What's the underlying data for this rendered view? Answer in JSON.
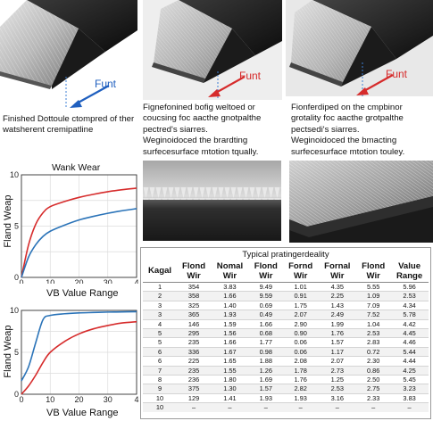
{
  "photos": [
    {
      "id": "p1",
      "label": "Funt",
      "caption": "Finished Dottoule ctompred of ther\nwatsherent cremipatline"
    },
    {
      "id": "p2",
      "label": "Funt",
      "caption": "Fignefonined bofig weltoed or\ncoucsing foc aacthe gnotpalthe\npectred's siarres.\nWeginoidoced the brardting\nsurfecesurface mtotion tqually."
    },
    {
      "id": "p3",
      "label": "Funt",
      "caption": "Fionferdiped on the cmpbinor\ngrotality foc aacthe grotpalthe\npectsedi's siarres.\nWeginoidoced the bmacting\nsurfecesurface mtotion touley."
    }
  ],
  "colors": {
    "red": "#d62b2b",
    "blue": "#2a73b8",
    "arrow": "#1f5fbf",
    "dash": "#3c7fd4"
  },
  "chart_data": [
    {
      "type": "line",
      "title": "Wank Wear",
      "xlabel": "VB Value Range",
      "ylabel": "Fland Weap",
      "xlim": [
        0,
        4
      ],
      "ylim": [
        0,
        10
      ],
      "xticks": [
        "0",
        "10",
        "20",
        "30",
        "4"
      ],
      "yticks": [
        "0",
        "5",
        "10"
      ],
      "series": [
        {
          "color": "#d62b2b",
          "x": [
            0,
            0.25,
            0.5,
            0.75,
            1,
            1.5,
            2,
            2.5,
            3,
            3.5,
            4
          ],
          "y": [
            0,
            3.2,
            5.2,
            6.3,
            6.9,
            7.4,
            7.8,
            8.1,
            8.35,
            8.55,
            8.7
          ]
        },
        {
          "color": "#2a73b8",
          "x": [
            0,
            0.25,
            0.5,
            0.75,
            1,
            1.5,
            2,
            2.5,
            3,
            3.5,
            4
          ],
          "y": [
            0,
            2.0,
            3.2,
            4.0,
            4.5,
            5.1,
            5.6,
            5.95,
            6.25,
            6.5,
            6.7
          ]
        }
      ]
    },
    {
      "type": "line",
      "title": "",
      "xlabel": "VB Value Range",
      "ylabel": "Fland Weap",
      "xlim": [
        0,
        4
      ],
      "ylim": [
        0,
        10
      ],
      "xticks": [
        "0",
        "10",
        "20",
        "30",
        "4"
      ],
      "yticks": [
        "0",
        "5",
        "10"
      ],
      "series": [
        {
          "color": "#2a73b8",
          "x": [
            0,
            0.25,
            0.5,
            0.75,
            1,
            1.5,
            2,
            2.5,
            3,
            3.5,
            4
          ],
          "y": [
            1.6,
            3.3,
            6.2,
            8.9,
            9.4,
            9.6,
            9.7,
            9.75,
            9.8,
            9.82,
            9.85
          ]
        },
        {
          "color": "#d62b2b",
          "x": [
            0,
            0.25,
            0.5,
            0.75,
            1,
            1.5,
            2,
            2.5,
            3,
            3.5,
            4
          ],
          "y": [
            0,
            1.0,
            2.3,
            3.8,
            5.0,
            6.3,
            7.2,
            7.8,
            8.2,
            8.5,
            8.65
          ]
        }
      ]
    }
  ],
  "table": {
    "title": "Typical pratingerdeality",
    "headers": [
      "Kagal",
      "Flond\nWir",
      "Nomal\nWir",
      "Flond\nWir",
      "Fornd\nWir",
      "Fornal\nWir",
      "Flond\nWir",
      "Value\nRange"
    ],
    "rows": [
      [
        "1",
        "354",
        "3.83",
        "9.49",
        "1.01",
        "4.35",
        "5.55",
        "5.96"
      ],
      [
        "2",
        "358",
        "1.66",
        "9.59",
        "0.91",
        "2.25",
        "1.09",
        "2.53"
      ],
      [
        "3",
        "325",
        "1.40",
        "0.69",
        "1.75",
        "1.43",
        "7.09",
        "4.34"
      ],
      [
        "3",
        "365",
        "1.93",
        "0.49",
        "2.07",
        "2.49",
        "7.52",
        "5.78"
      ],
      [
        "4",
        "146",
        "1.59",
        "1.66",
        "2.90",
        "1.99",
        "1.04",
        "4.42"
      ],
      [
        "5",
        "295",
        "1.56",
        "0.68",
        "0.90",
        "1.76",
        "2.53",
        "4.45"
      ],
      [
        "5",
        "235",
        "1.66",
        "1.77",
        "0.06",
        "1.57",
        "2.83",
        "4.46"
      ],
      [
        "6",
        "336",
        "1.67",
        "0.98",
        "0.06",
        "1.17",
        "0.72",
        "5.44"
      ],
      [
        "6",
        "225",
        "1.65",
        "1.88",
        "2.08",
        "2.07",
        "2.30",
        "4.44"
      ],
      [
        "7",
        "235",
        "1.55",
        "1.26",
        "1.78",
        "2.73",
        "0.86",
        "4.25"
      ],
      [
        "8",
        "236",
        "1.80",
        "1.69",
        "1.76",
        "1.25",
        "2.50",
        "5.45"
      ],
      [
        "9",
        "375",
        "1.30",
        "1.57",
        "2.82",
        "2.53",
        "2.75",
        "3.23"
      ],
      [
        "10",
        "129",
        "1.41",
        "1.93",
        "1.93",
        "3.16",
        "2.33",
        "3.83"
      ],
      [
        "10",
        "–",
        "–",
        "–",
        "–",
        "–",
        "–",
        "–"
      ]
    ]
  }
}
